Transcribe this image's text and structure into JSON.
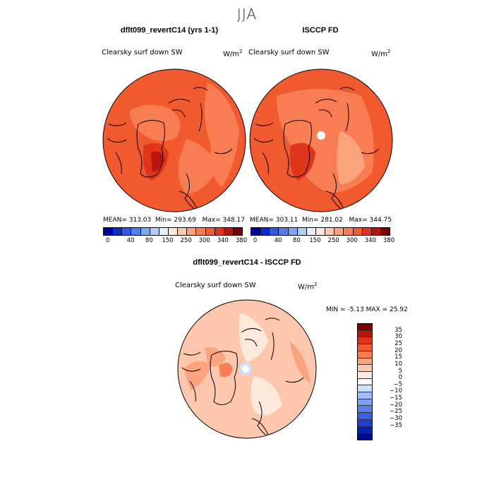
{
  "season": "JJA",
  "units_text": "W/m",
  "units_sup": "2",
  "panel_model": {
    "title": "dflt099_revertC14 (yrs 1-1)",
    "variable": "Clearsky surf down SW",
    "mean_label": "MEAN=",
    "mean": "313.03",
    "min_label": "Min=",
    "min": "293.69",
    "max_label": "Max=",
    "max": "348.17"
  },
  "panel_obs": {
    "title": "ISCCP FD",
    "variable": "Clearsky surf down SW",
    "mean_label": "MEAN=",
    "mean": "303.11",
    "min_label": "Min=",
    "min": "281.02",
    "max_label": "Max=",
    "max": "344.75"
  },
  "panel_diff": {
    "title": "dflt099_revertC14 - ISCCP FD",
    "variable": "Clearsky surf down SW",
    "min_label": "MIN =",
    "min": "-5.13",
    "max_label": "MAX =",
    "max": "25.92"
  },
  "abs_colorbar": {
    "colors": [
      "#00009a",
      "#0a2cc8",
      "#2a5ae6",
      "#4f7fef",
      "#7fa6f5",
      "#b3cdfa",
      "#e6f0fb",
      "#fde8dc",
      "#fcc7ac",
      "#fba37f",
      "#f97d52",
      "#f05a2e",
      "#e0341b",
      "#b9150d",
      "#7d0000"
    ],
    "ticks": [
      "0",
      "40",
      "80",
      "150",
      "250",
      "300",
      "340",
      "380"
    ]
  },
  "diff_colorbar": {
    "colors": [
      "#7d0000",
      "#b9150d",
      "#e0341b",
      "#f05a2e",
      "#f97d52",
      "#fba37f",
      "#fcc7ac",
      "#fde8dc",
      "#ffffff",
      "#cfe0fa",
      "#9fbff6",
      "#7fa0f0",
      "#5a80ea",
      "#3d5fe2",
      "#1f3dd3",
      "#001fb3",
      "#000a8c"
    ],
    "ticks": [
      "35",
      "30",
      "25",
      "20",
      "15",
      "10",
      "5",
      "0",
      "−5",
      "−10",
      "−15",
      "−20",
      "−25",
      "−30",
      "−35"
    ]
  },
  "chart_data": {
    "type": "map",
    "projection": "north polar stereographic",
    "season": "JJA",
    "variable": "Clearsky surf down SW",
    "units": "W/m2",
    "panels": [
      {
        "title": "dflt099_revertC14 (yrs 1-1)",
        "mean": 313.03,
        "min": 293.69,
        "max": 348.17,
        "contour_levels": [
          0,
          40,
          80,
          150,
          250,
          300,
          340,
          380
        ]
      },
      {
        "title": "ISCCP FD",
        "mean": 303.11,
        "min": 281.02,
        "max": 344.75,
        "contour_levels": [
          0,
          40,
          80,
          150,
          250,
          300,
          340,
          380
        ]
      },
      {
        "title": "dflt099_revertC14 - ISCCP FD",
        "min": -5.13,
        "max": 25.92,
        "contour_levels": [
          -35,
          -30,
          -25,
          -20,
          -15,
          -10,
          -5,
          0,
          5,
          10,
          15,
          20,
          25,
          30,
          35
        ]
      }
    ]
  }
}
